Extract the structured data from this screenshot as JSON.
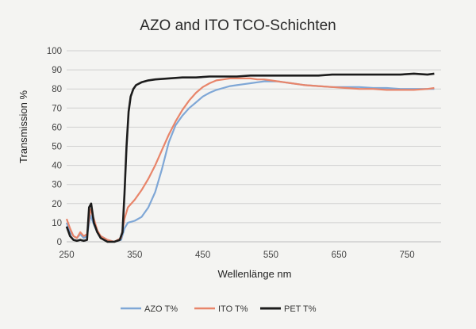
{
  "chart_data": {
    "type": "line",
    "title": "AZO and ITO TCO-Schichten",
    "xlabel": "Wellenlänge nm",
    "ylabel": "Transmission %",
    "xlim": [
      250,
      800
    ],
    "ylim": [
      0,
      100
    ],
    "xticks": [
      250,
      350,
      450,
      550,
      650,
      750
    ],
    "yticks": [
      0,
      10,
      20,
      30,
      40,
      50,
      60,
      70,
      80,
      90,
      100
    ],
    "grid": true,
    "legend_position": "bottom",
    "series": [
      {
        "name": "AZO T%",
        "color": "#7fa7d6",
        "points": [
          [
            250,
            10
          ],
          [
            255,
            5
          ],
          [
            260,
            3
          ],
          [
            265,
            2
          ],
          [
            270,
            4
          ],
          [
            275,
            2
          ],
          [
            280,
            3
          ],
          [
            285,
            14
          ],
          [
            290,
            9
          ],
          [
            295,
            5
          ],
          [
            300,
            3
          ],
          [
            310,
            1
          ],
          [
            320,
            0
          ],
          [
            330,
            1
          ],
          [
            335,
            7
          ],
          [
            340,
            10
          ],
          [
            350,
            11
          ],
          [
            360,
            13
          ],
          [
            370,
            18
          ],
          [
            380,
            26
          ],
          [
            390,
            38
          ],
          [
            400,
            52
          ],
          [
            410,
            61
          ],
          [
            420,
            66
          ],
          [
            430,
            70
          ],
          [
            440,
            73
          ],
          [
            450,
            76
          ],
          [
            460,
            78
          ],
          [
            470,
            79.5
          ],
          [
            480,
            80.5
          ],
          [
            490,
            81.5
          ],
          [
            500,
            82
          ],
          [
            510,
            82.5
          ],
          [
            520,
            83
          ],
          [
            530,
            83.5
          ],
          [
            540,
            84
          ],
          [
            550,
            84
          ],
          [
            560,
            84
          ],
          [
            570,
            83.5
          ],
          [
            580,
            83
          ],
          [
            590,
            82.5
          ],
          [
            600,
            82
          ],
          [
            620,
            81.5
          ],
          [
            640,
            81
          ],
          [
            660,
            81
          ],
          [
            680,
            81
          ],
          [
            700,
            80.5
          ],
          [
            720,
            80.5
          ],
          [
            740,
            80
          ],
          [
            760,
            80
          ],
          [
            780,
            80
          ],
          [
            790,
            80
          ]
        ]
      },
      {
        "name": "ITO T%",
        "color": "#e8856a",
        "points": [
          [
            250,
            12
          ],
          [
            255,
            7
          ],
          [
            260,
            3
          ],
          [
            265,
            2
          ],
          [
            270,
            5
          ],
          [
            275,
            3
          ],
          [
            280,
            4
          ],
          [
            285,
            17
          ],
          [
            290,
            12
          ],
          [
            295,
            6
          ],
          [
            300,
            3
          ],
          [
            310,
            1
          ],
          [
            320,
            0
          ],
          [
            330,
            2
          ],
          [
            335,
            12
          ],
          [
            340,
            18
          ],
          [
            350,
            22
          ],
          [
            360,
            27
          ],
          [
            370,
            33
          ],
          [
            380,
            40
          ],
          [
            390,
            48
          ],
          [
            400,
            56
          ],
          [
            410,
            63
          ],
          [
            420,
            69
          ],
          [
            430,
            74
          ],
          [
            440,
            78
          ],
          [
            450,
            81
          ],
          [
            460,
            83
          ],
          [
            470,
            84.5
          ],
          [
            480,
            85
          ],
          [
            490,
            85.5
          ],
          [
            500,
            85.5
          ],
          [
            510,
            85.5
          ],
          [
            520,
            85.5
          ],
          [
            530,
            85
          ],
          [
            540,
            85
          ],
          [
            550,
            84.5
          ],
          [
            560,
            84
          ],
          [
            570,
            83.5
          ],
          [
            580,
            83
          ],
          [
            590,
            82.5
          ],
          [
            600,
            82
          ],
          [
            620,
            81.5
          ],
          [
            640,
            81
          ],
          [
            660,
            80.5
          ],
          [
            680,
            80
          ],
          [
            700,
            80
          ],
          [
            720,
            79.5
          ],
          [
            740,
            79.5
          ],
          [
            760,
            79.5
          ],
          [
            780,
            80
          ],
          [
            790,
            80.5
          ]
        ]
      },
      {
        "name": "PET T%",
        "color": "#1c1c1c",
        "points": [
          [
            250,
            8
          ],
          [
            255,
            3
          ],
          [
            260,
            1
          ],
          [
            265,
            0.5
          ],
          [
            270,
            1
          ],
          [
            275,
            0.5
          ],
          [
            280,
            1
          ],
          [
            283,
            18
          ],
          [
            286,
            20
          ],
          [
            290,
            10
          ],
          [
            295,
            5
          ],
          [
            300,
            2
          ],
          [
            310,
            0
          ],
          [
            320,
            0
          ],
          [
            328,
            1
          ],
          [
            332,
            5
          ],
          [
            335,
            25
          ],
          [
            338,
            50
          ],
          [
            341,
            68
          ],
          [
            344,
            76
          ],
          [
            348,
            80
          ],
          [
            352,
            82
          ],
          [
            360,
            83.5
          ],
          [
            370,
            84.5
          ],
          [
            380,
            85
          ],
          [
            400,
            85.5
          ],
          [
            420,
            86
          ],
          [
            440,
            86
          ],
          [
            460,
            86.5
          ],
          [
            480,
            86.5
          ],
          [
            500,
            86.5
          ],
          [
            520,
            87
          ],
          [
            540,
            87
          ],
          [
            560,
            87
          ],
          [
            580,
            87
          ],
          [
            600,
            87
          ],
          [
            620,
            87
          ],
          [
            640,
            87.5
          ],
          [
            660,
            87.5
          ],
          [
            680,
            87.5
          ],
          [
            700,
            87.5
          ],
          [
            720,
            87.5
          ],
          [
            740,
            87.5
          ],
          [
            760,
            88
          ],
          [
            780,
            87.5
          ],
          [
            790,
            88
          ]
        ]
      }
    ]
  }
}
